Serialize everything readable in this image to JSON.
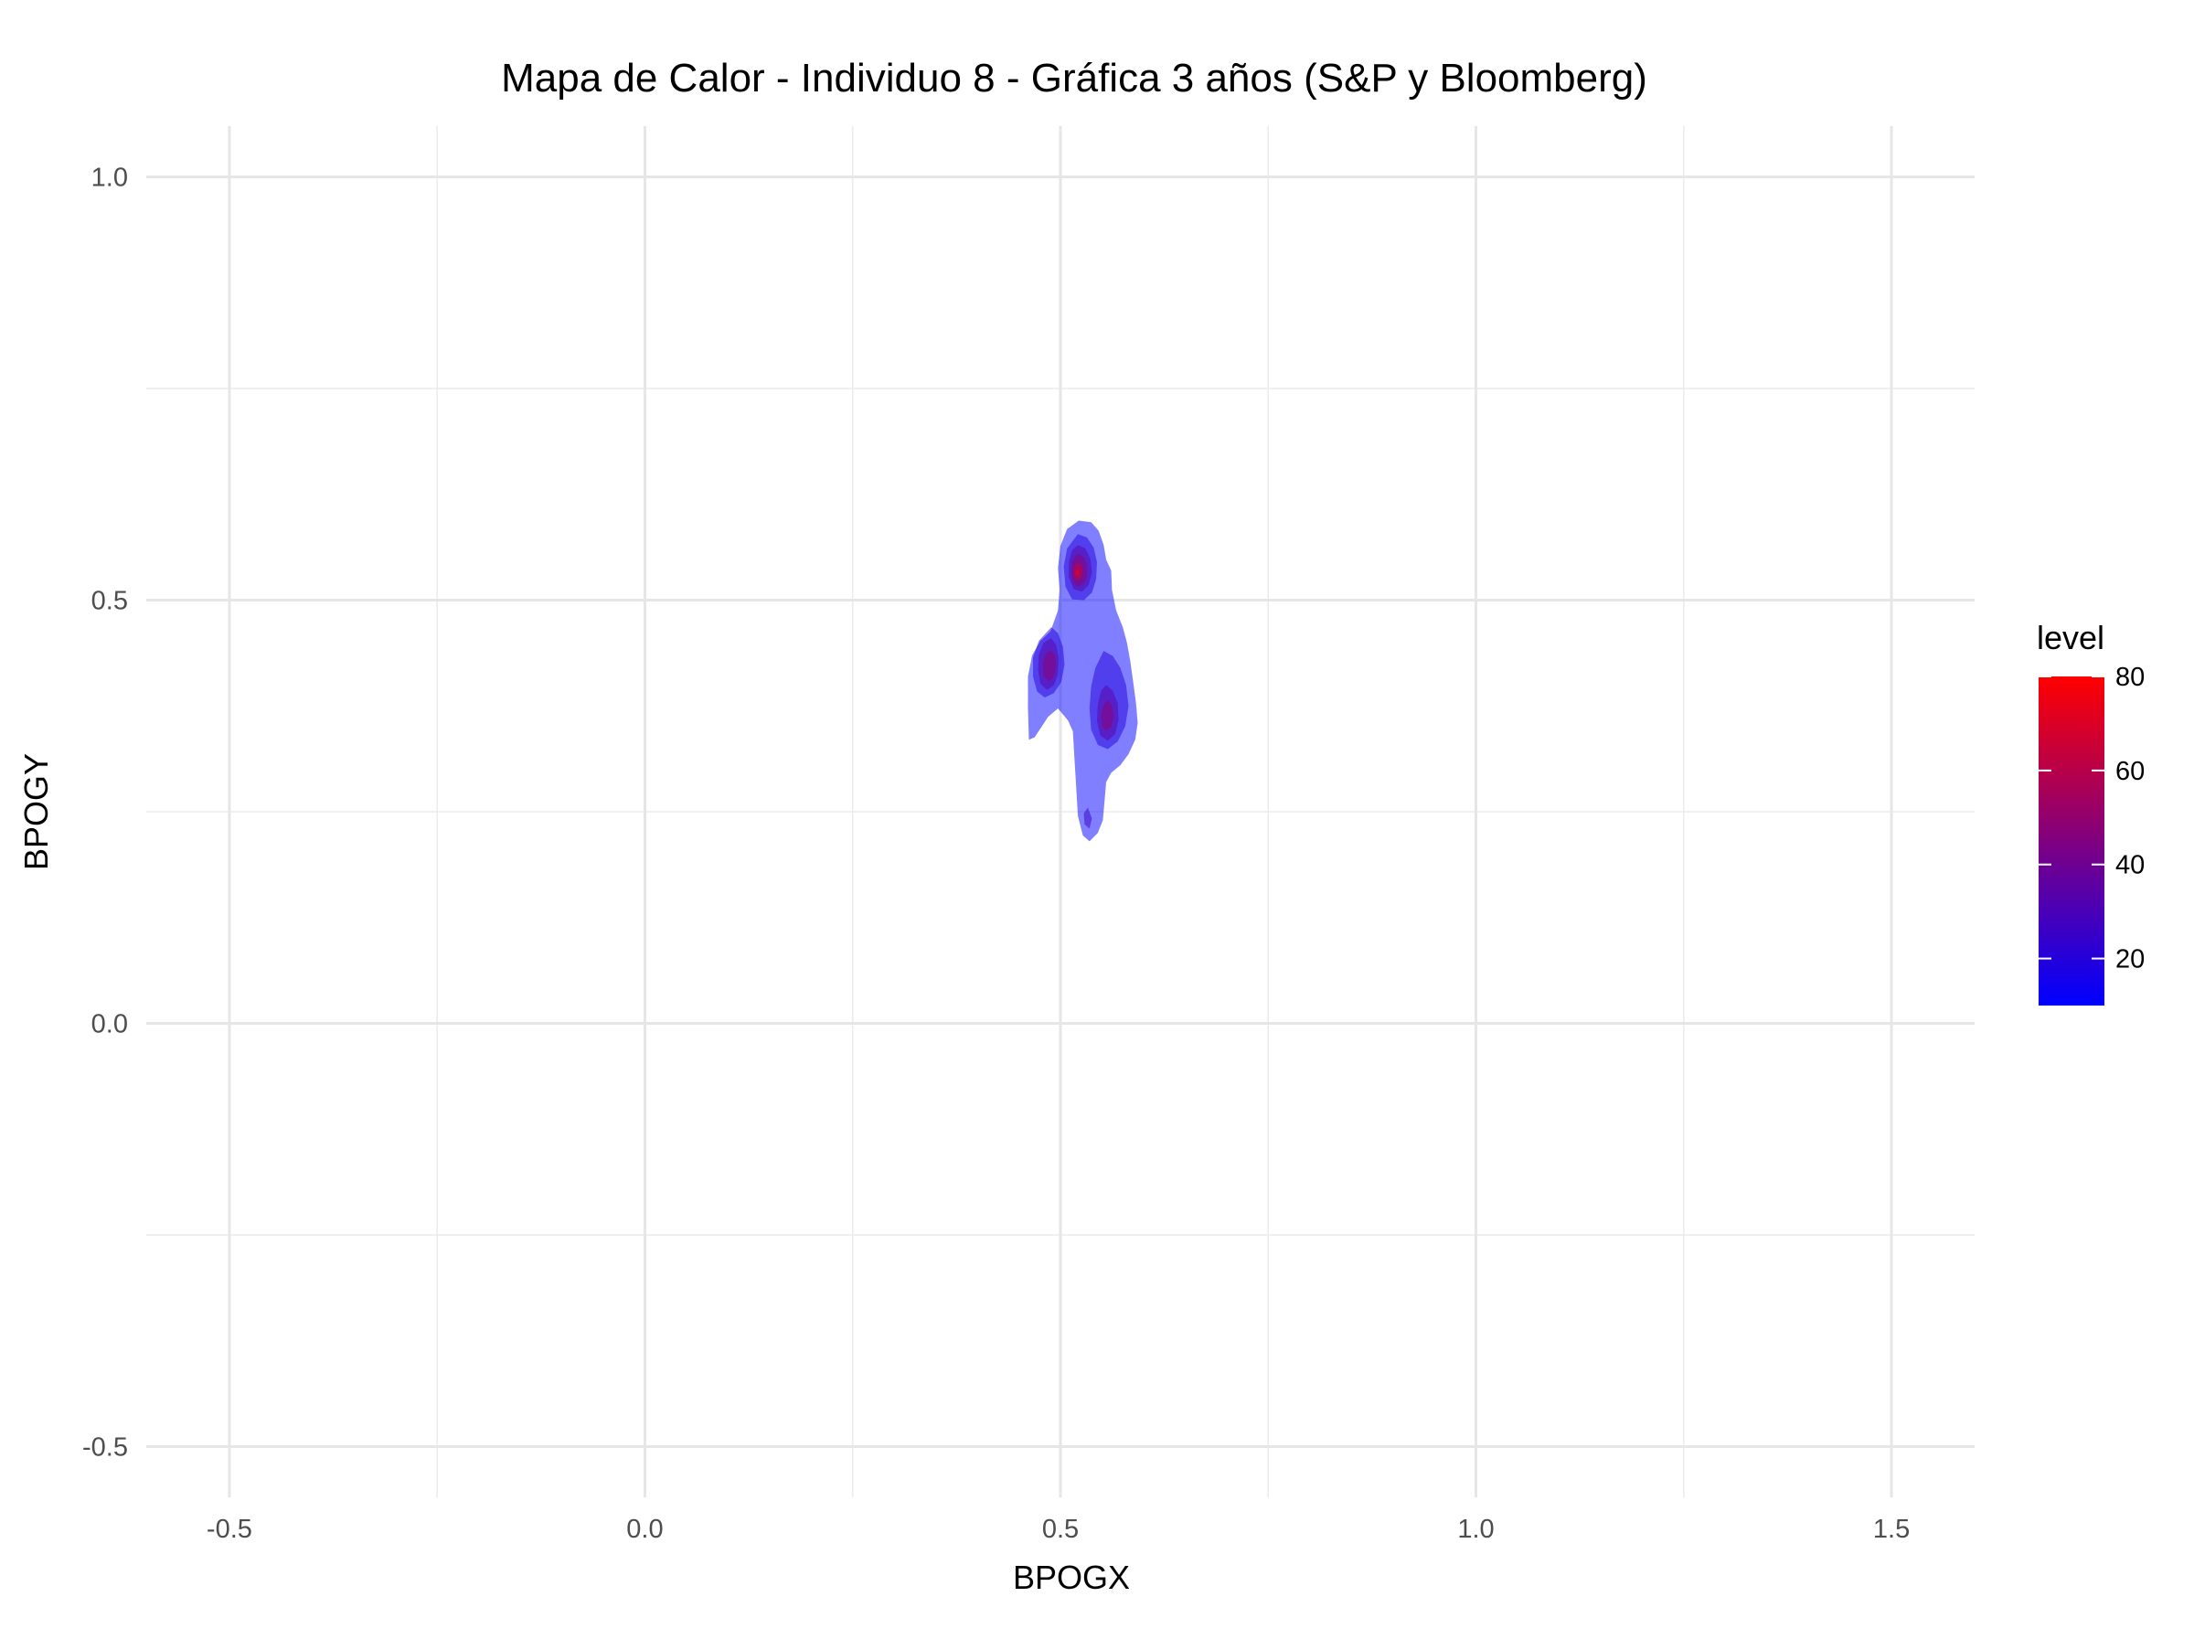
{
  "chart_data": {
    "type": "heatmap",
    "subtype": "2d-density-contour",
    "title": "Mapa de Calor - Individuo 8 - Gráfica 3 años (S&P y Bloomberg)",
    "xlabel": "BPOGX",
    "ylabel": "BPOGY",
    "xlim": [
      -0.6,
      1.6
    ],
    "ylim": [
      -0.56,
      1.06
    ],
    "x_ticks": [
      -0.5,
      0.0,
      0.5,
      1.0,
      1.5
    ],
    "x_tick_labels": [
      "-0.5",
      "0.0",
      "0.5",
      "1.0",
      "1.5"
    ],
    "y_ticks": [
      -0.5,
      0.0,
      0.5,
      1.0
    ],
    "y_tick_labels": [
      "-0.5",
      "0.0",
      "0.5",
      "1.0"
    ],
    "grid": true,
    "legend": {
      "title": "level",
      "position": "right",
      "range": [
        10,
        80
      ],
      "ticks": [
        20,
        40,
        60,
        80
      ],
      "tick_labels": [
        "20",
        "40",
        "60",
        "80"
      ],
      "color_low": "#0000ff",
      "color_high": "#ff0000"
    },
    "contours": [
      {
        "level": 10,
        "polygon": [
          [
            0.522,
            0.594
          ],
          [
            0.537,
            0.592
          ],
          [
            0.546,
            0.582
          ],
          [
            0.552,
            0.565
          ],
          [
            0.555,
            0.548
          ],
          [
            0.561,
            0.535
          ],
          [
            0.562,
            0.512
          ],
          [
            0.567,
            0.488
          ],
          [
            0.575,
            0.468
          ],
          [
            0.58,
            0.45
          ],
          [
            0.584,
            0.428
          ],
          [
            0.588,
            0.4
          ],
          [
            0.591,
            0.378
          ],
          [
            0.593,
            0.355
          ],
          [
            0.59,
            0.335
          ],
          [
            0.582,
            0.318
          ],
          [
            0.572,
            0.305
          ],
          [
            0.561,
            0.296
          ],
          [
            0.555,
            0.285
          ],
          [
            0.553,
            0.262
          ],
          [
            0.551,
            0.24
          ],
          [
            0.545,
            0.225
          ],
          [
            0.535,
            0.215
          ],
          [
            0.527,
            0.222
          ],
          [
            0.521,
            0.245
          ],
          [
            0.519,
            0.278
          ],
          [
            0.517,
            0.31
          ],
          [
            0.515,
            0.345
          ],
          [
            0.509,
            0.358
          ],
          [
            0.497,
            0.372
          ],
          [
            0.485,
            0.362
          ],
          [
            0.469,
            0.338
          ],
          [
            0.462,
            0.335
          ],
          [
            0.461,
            0.372
          ],
          [
            0.461,
            0.41
          ],
          [
            0.466,
            0.435
          ],
          [
            0.476,
            0.452
          ],
          [
            0.488,
            0.463
          ],
          [
            0.497,
            0.488
          ],
          [
            0.499,
            0.512
          ],
          [
            0.497,
            0.538
          ],
          [
            0.5,
            0.564
          ],
          [
            0.508,
            0.584
          ]
        ]
      },
      {
        "level": 20,
        "polygon": [
          [
            0.521,
            0.578
          ],
          [
            0.532,
            0.574
          ],
          [
            0.54,
            0.562
          ],
          [
            0.544,
            0.545
          ],
          [
            0.543,
            0.525
          ],
          [
            0.538,
            0.509
          ],
          [
            0.528,
            0.5
          ],
          [
            0.514,
            0.501
          ],
          [
            0.506,
            0.516
          ],
          [
            0.504,
            0.54
          ],
          [
            0.508,
            0.561
          ]
        ]
      },
      {
        "level": 20,
        "polygon": [
          [
            0.489,
            0.468
          ],
          [
            0.497,
            0.461
          ],
          [
            0.503,
            0.445
          ],
          [
            0.505,
            0.424
          ],
          [
            0.501,
            0.403
          ],
          [
            0.492,
            0.39
          ],
          [
            0.481,
            0.385
          ],
          [
            0.472,
            0.392
          ],
          [
            0.467,
            0.41
          ],
          [
            0.467,
            0.432
          ],
          [
            0.474,
            0.452
          ]
        ]
      },
      {
        "level": 20,
        "polygon": [
          [
            0.552,
            0.44
          ],
          [
            0.563,
            0.434
          ],
          [
            0.572,
            0.42
          ],
          [
            0.579,
            0.4
          ],
          [
            0.582,
            0.375
          ],
          [
            0.578,
            0.351
          ],
          [
            0.569,
            0.333
          ],
          [
            0.557,
            0.324
          ],
          [
            0.545,
            0.329
          ],
          [
            0.537,
            0.347
          ],
          [
            0.535,
            0.372
          ],
          [
            0.537,
            0.398
          ],
          [
            0.542,
            0.42
          ]
        ]
      },
      {
        "level": 25,
        "polygon": [
          [
            0.533,
            0.255
          ],
          [
            0.538,
            0.242
          ],
          [
            0.535,
            0.23
          ],
          [
            0.529,
            0.235
          ],
          [
            0.528,
            0.248
          ]
        ]
      },
      {
        "level": 35,
        "polygon": [
          [
            0.521,
            0.565
          ],
          [
            0.53,
            0.561
          ],
          [
            0.536,
            0.549
          ],
          [
            0.538,
            0.533
          ],
          [
            0.534,
            0.518
          ],
          [
            0.526,
            0.51
          ],
          [
            0.516,
            0.513
          ],
          [
            0.51,
            0.527
          ],
          [
            0.51,
            0.545
          ],
          [
            0.514,
            0.559
          ]
        ]
      },
      {
        "level": 35,
        "polygon": [
          [
            0.489,
            0.455
          ],
          [
            0.495,
            0.447
          ],
          [
            0.498,
            0.431
          ],
          [
            0.497,
            0.412
          ],
          [
            0.492,
            0.399
          ],
          [
            0.484,
            0.394
          ],
          [
            0.476,
            0.401
          ],
          [
            0.473,
            0.418
          ],
          [
            0.474,
            0.436
          ],
          [
            0.48,
            0.45
          ]
        ]
      },
      {
        "level": 35,
        "polygon": [
          [
            0.555,
            0.4
          ],
          [
            0.563,
            0.393
          ],
          [
            0.569,
            0.378
          ],
          [
            0.57,
            0.359
          ],
          [
            0.566,
            0.342
          ],
          [
            0.557,
            0.334
          ],
          [
            0.548,
            0.34
          ],
          [
            0.544,
            0.357
          ],
          [
            0.545,
            0.377
          ],
          [
            0.549,
            0.393
          ]
        ]
      },
      {
        "level": 50,
        "polygon": [
          [
            0.521,
            0.555
          ],
          [
            0.528,
            0.551
          ],
          [
            0.532,
            0.54
          ],
          [
            0.532,
            0.528
          ],
          [
            0.528,
            0.519
          ],
          [
            0.521,
            0.516
          ],
          [
            0.515,
            0.521
          ],
          [
            0.513,
            0.533
          ],
          [
            0.514,
            0.546
          ]
        ]
      },
      {
        "level": 50,
        "polygon": [
          [
            0.489,
            0.441
          ],
          [
            0.494,
            0.434
          ],
          [
            0.495,
            0.421
          ],
          [
            0.492,
            0.409
          ],
          [
            0.486,
            0.404
          ],
          [
            0.48,
            0.41
          ],
          [
            0.479,
            0.424
          ],
          [
            0.482,
            0.436
          ]
        ]
      },
      {
        "level": 50,
        "polygon": [
          [
            0.557,
            0.382
          ],
          [
            0.562,
            0.375
          ],
          [
            0.564,
            0.362
          ],
          [
            0.561,
            0.35
          ],
          [
            0.555,
            0.345
          ],
          [
            0.55,
            0.351
          ],
          [
            0.549,
            0.364
          ],
          [
            0.552,
            0.376
          ]
        ]
      },
      {
        "level": 68,
        "polygon": [
          [
            0.521,
            0.545
          ],
          [
            0.526,
            0.541
          ],
          [
            0.527,
            0.533
          ],
          [
            0.524,
            0.525
          ],
          [
            0.519,
            0.523
          ],
          [
            0.516,
            0.529
          ],
          [
            0.516,
            0.538
          ]
        ]
      },
      {
        "level": 80,
        "polygon": [
          [
            0.52,
            0.537
          ],
          [
            0.523,
            0.534
          ],
          [
            0.522,
            0.529
          ],
          [
            0.519,
            0.529
          ],
          [
            0.518,
            0.533
          ]
        ]
      }
    ]
  }
}
